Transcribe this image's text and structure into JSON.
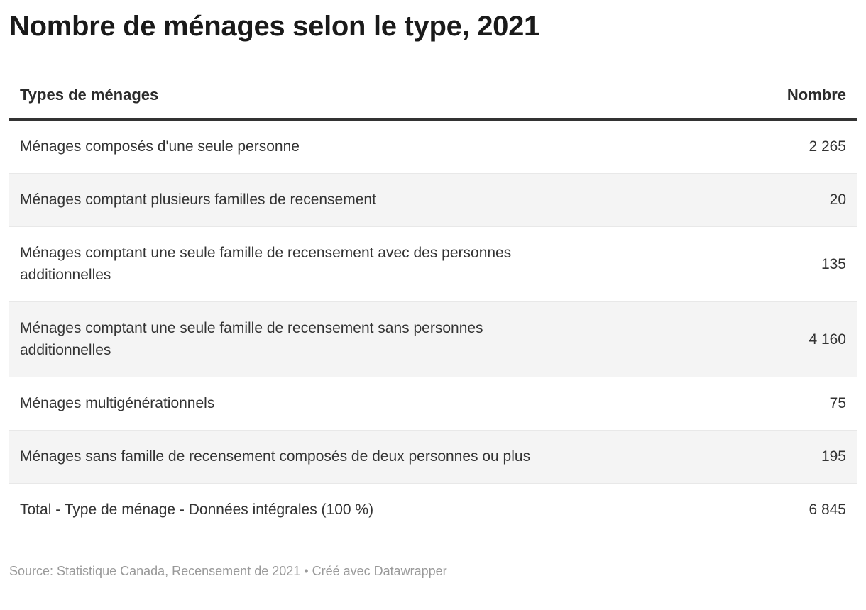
{
  "title": "Nombre de ménages selon le type, 2021",
  "table": {
    "header": {
      "type": "Types de ménages",
      "number": "Nombre"
    },
    "rows": [
      {
        "type": "Ménages composés d'une seule personne",
        "count": "2 265"
      },
      {
        "type": "Ménages comptant plusieurs familles de recensement",
        "count": "20"
      },
      {
        "type": "Ménages comptant une seule famille de recensement avec des personnes additionnelles",
        "count": "135"
      },
      {
        "type": "Ménages comptant une seule famille de recensement sans personnes additionnelles",
        "count": "4 160"
      },
      {
        "type": "Ménages multigénérationnels",
        "count": "75"
      },
      {
        "type": "Ménages sans famille de recensement composés de deux personnes ou plus",
        "count": "195"
      },
      {
        "type": "Total - Type de ménage - Données intégrales (100 %)",
        "count": "6 845"
      }
    ]
  },
  "footer": {
    "source_text": "Source: Statistique Canada, Recensement de 2021",
    "separator": " • ",
    "credit_text": "Créé avec Datawrapper"
  },
  "colors": {
    "title_text": "#1a1a1a",
    "body_text": "#333333",
    "header_border": "#333333",
    "row_border": "#e8e8e8",
    "stripe_background": "#f4f4f4",
    "footer_text": "#999999",
    "page_background": "#ffffff"
  },
  "chart_data": {
    "type": "table",
    "title": "Nombre de ménages selon le type, 2021",
    "columns": [
      "Types de ménages",
      "Nombre"
    ],
    "categories": [
      "Ménages composés d'une seule personne",
      "Ménages comptant plusieurs familles de recensement",
      "Ménages comptant une seule famille de recensement avec des personnes additionnelles",
      "Ménages comptant une seule famille de recensement sans personnes additionnelles",
      "Ménages multigénérationnels",
      "Ménages sans famille de recensement composés de deux personnes ou plus",
      "Total - Type de ménage - Données intégrales (100 %)"
    ],
    "values": [
      2265,
      20,
      135,
      4160,
      75,
      195,
      6845
    ],
    "layout_hints": {
      "striped_rows": true,
      "value_alignment": "right",
      "source": "Statistique Canada, Recensement de 2021",
      "tool_credit": "Datawrapper"
    }
  }
}
